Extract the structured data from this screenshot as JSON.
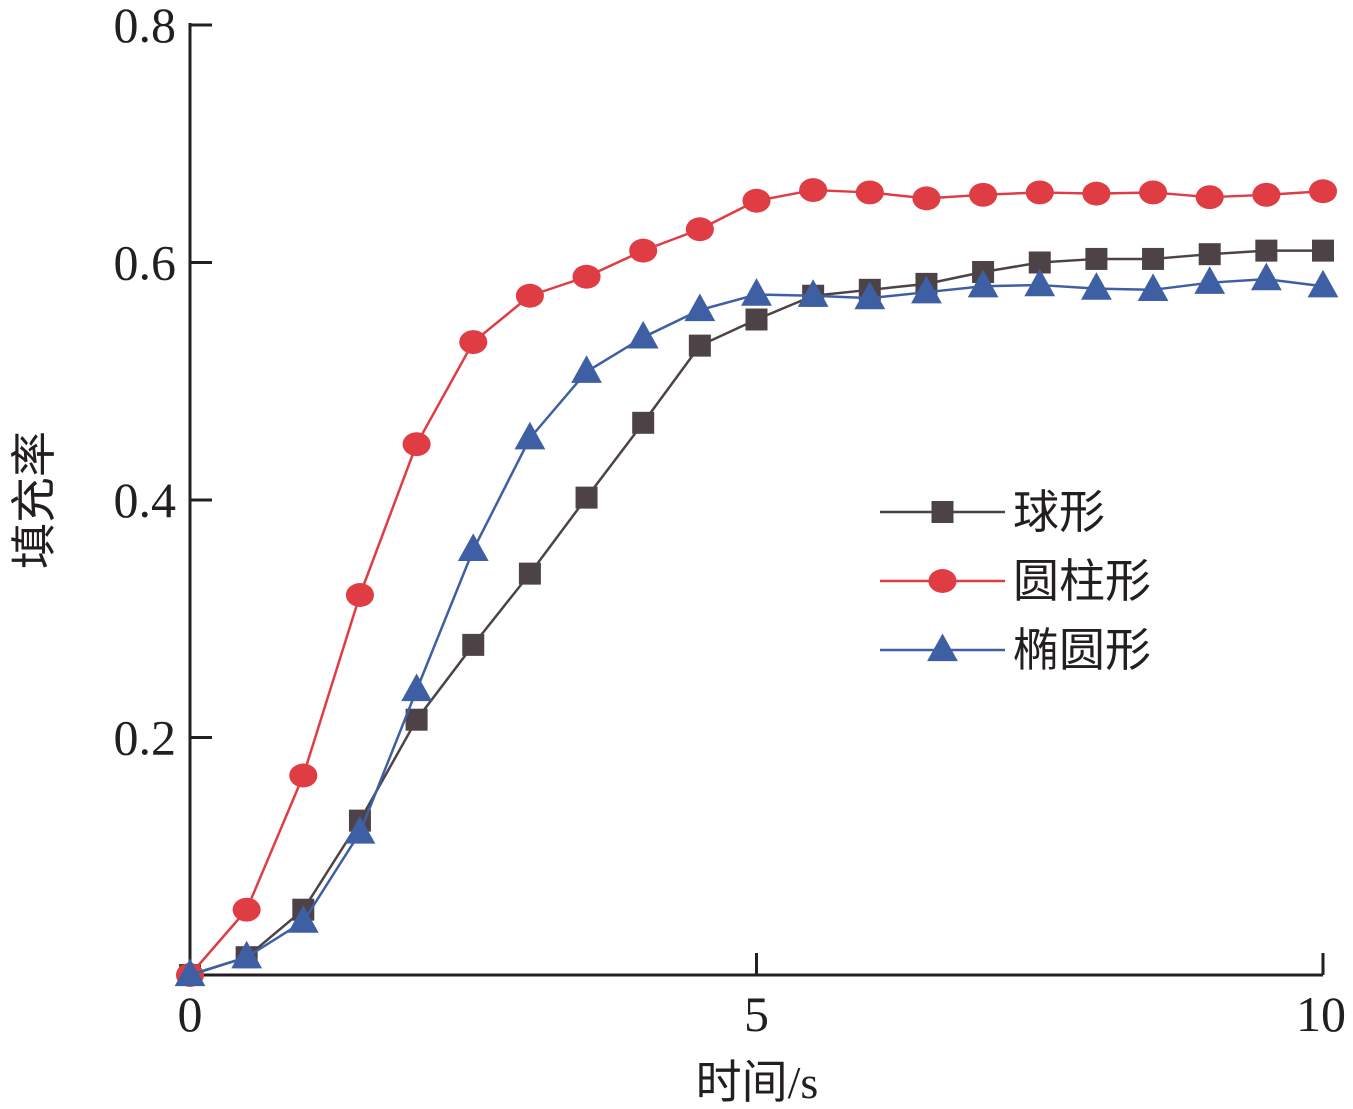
{
  "chart_data": {
    "type": "line",
    "title": "",
    "xlabel": "时间/s",
    "ylabel": "填充率",
    "xlim": [
      0,
      10
    ],
    "ylim": [
      0,
      0.8
    ],
    "xticks": [
      0,
      5,
      10
    ],
    "yticks": [
      0.2,
      0.4,
      0.6,
      0.8
    ],
    "xtick_labels": [
      "0",
      "5",
      "10"
    ],
    "ytick_labels": [
      "0.2",
      "0.4",
      "0.6",
      "0.8"
    ],
    "grid": false,
    "legend_position": "right-middle",
    "x": [
      0,
      0.5,
      1,
      1.5,
      2,
      2.5,
      3,
      3.5,
      4,
      4.5,
      5,
      5.5,
      6,
      6.5,
      7,
      7.5,
      8,
      8.5,
      9,
      9.5,
      10
    ],
    "series": [
      {
        "name": "球形",
        "marker": "square",
        "color": "#4d4346",
        "values": [
          0,
          0.015,
          0.055,
          0.13,
          0.215,
          0.278,
          0.338,
          0.402,
          0.465,
          0.53,
          0.552,
          0.572,
          0.577,
          0.582,
          0.592,
          0.6,
          0.603,
          0.603,
          0.607,
          0.61,
          0.61
        ]
      },
      {
        "name": "圆柱形",
        "marker": "circle",
        "color": "#e03c44",
        "values": [
          0,
          0.055,
          0.168,
          0.32,
          0.447,
          0.533,
          0.572,
          0.588,
          0.61,
          0.628,
          0.652,
          0.661,
          0.659,
          0.654,
          0.657,
          0.659,
          0.658,
          0.659,
          0.655,
          0.657,
          0.66
        ]
      },
      {
        "name": "椭圆形",
        "marker": "triangle",
        "color": "#3f5fa4",
        "values": [
          0,
          0.015,
          0.045,
          0.12,
          0.24,
          0.358,
          0.452,
          0.508,
          0.537,
          0.56,
          0.573,
          0.572,
          0.57,
          0.575,
          0.58,
          0.581,
          0.578,
          0.577,
          0.583,
          0.586,
          0.58
        ]
      }
    ]
  }
}
